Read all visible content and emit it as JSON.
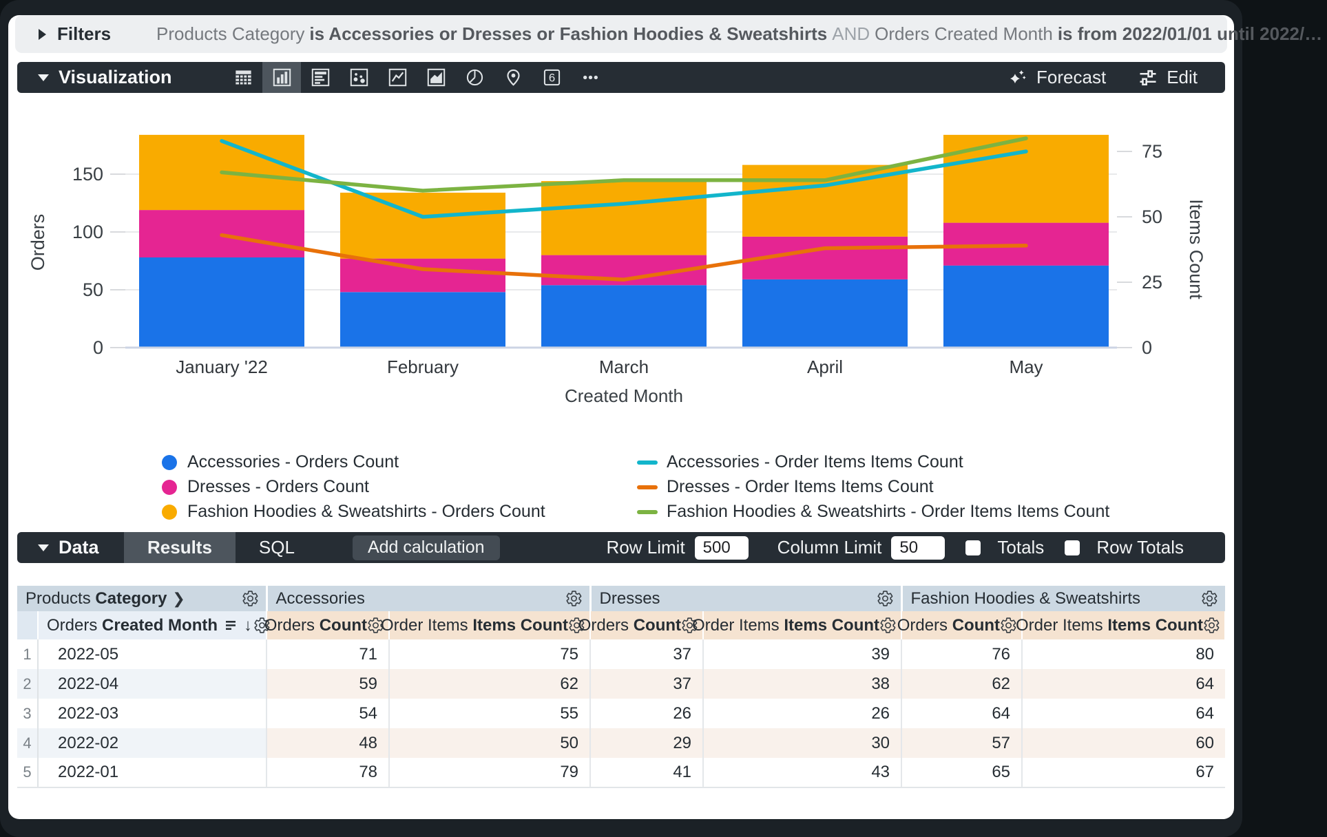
{
  "filters_bar": {
    "label": "Filters",
    "clause": [
      {
        "text": "Products Category",
        "style": "normal"
      },
      {
        "text": "is Accessories or Dresses or Fashion Hoodies & Sweatshirts",
        "style": "bold"
      },
      {
        "text": "AND",
        "style": "muted"
      },
      {
        "text": "Orders Created Month",
        "style": "normal"
      },
      {
        "text": "is from 2022/01/01 until 2022/…",
        "style": "bold"
      }
    ]
  },
  "viz_bar": {
    "label": "Visualization",
    "icons": [
      {
        "name": "table-icon",
        "selected": false
      },
      {
        "name": "column-chart-icon",
        "selected": true
      },
      {
        "name": "bar-chart-icon",
        "selected": false
      },
      {
        "name": "scatter-icon",
        "selected": false
      },
      {
        "name": "line-chart-icon",
        "selected": false
      },
      {
        "name": "area-chart-icon",
        "selected": false
      },
      {
        "name": "pie-chart-icon",
        "selected": false
      },
      {
        "name": "map-icon",
        "selected": false
      },
      {
        "name": "single-value-icon",
        "selected": false
      },
      {
        "name": "more-icon",
        "selected": false
      }
    ],
    "single_value_glyph": "6",
    "forecast_label": "Forecast",
    "edit_label": "Edit"
  },
  "chart_data": {
    "type": "combo (stacked bar + line, dual axis)",
    "categories": [
      "January '22",
      "February",
      "March",
      "April",
      "May"
    ],
    "bar_series": [
      {
        "name": "Accessories - Orders Count",
        "color": "#1A73E8",
        "values": [
          78,
          48,
          54,
          59,
          71
        ]
      },
      {
        "name": "Dresses - Orders Count",
        "color": "#E52592",
        "values": [
          41,
          29,
          26,
          37,
          37
        ]
      },
      {
        "name": "Fashion Hoodies & Sweatshirts - Orders Count",
        "color": "#F9AB00",
        "values": [
          65,
          57,
          64,
          62,
          76
        ]
      }
    ],
    "line_series": [
      {
        "name": "Accessories - Order Items Items Count",
        "color": "#12B5CB",
        "values": [
          79,
          50,
          55,
          62,
          75
        ]
      },
      {
        "name": "Dresses - Order Items Items Count",
        "color": "#E8710A",
        "values": [
          43,
          30,
          26,
          38,
          39
        ]
      },
      {
        "name": "Fashion Hoodies & Sweatshirts - Order Items Items Count",
        "color": "#7CB342",
        "values": [
          67,
          60,
          64,
          64,
          80
        ]
      }
    ],
    "xlabel": "Created Month",
    "y_left": {
      "label": "Orders",
      "ticks": [
        0,
        50,
        100,
        150
      ],
      "range": [
        0,
        190
      ]
    },
    "y_right": {
      "label": "Items Count",
      "ticks": [
        0,
        25,
        50,
        75
      ],
      "range": [
        0,
        96
      ]
    },
    "grid": "horizontal only",
    "legend_position": "bottom, two columns"
  },
  "data_bar": {
    "label": "Data",
    "tabs": [
      {
        "label": "Results",
        "active": true
      },
      {
        "label": "SQL",
        "active": false
      }
    ],
    "add_calculation_label": "Add calculation",
    "row_limit_label": "Row Limit",
    "row_limit_value": "500",
    "column_limit_label": "Column Limit",
    "column_limit_value": "50",
    "totals_label": "Totals",
    "totals_checked": false,
    "row_totals_label": "Row Totals",
    "row_totals_checked": false
  },
  "table": {
    "dimension_group": {
      "normal": "Products",
      "bold": "Category"
    },
    "dimension_column": {
      "normal": "Orders",
      "bold": "Created Month"
    },
    "measure_groups": [
      "Accessories",
      "Dresses",
      "Fashion Hoodies & Sweatshirts"
    ],
    "measure_columns": [
      {
        "normal": "Orders",
        "bold": "Count"
      },
      {
        "normal": "Order Items",
        "bold": "Items Count"
      }
    ],
    "rows": [
      {
        "index": "1",
        "month": "2022-05",
        "values": [
          "71",
          "75",
          "37",
          "39",
          "76",
          "80"
        ]
      },
      {
        "index": "2",
        "month": "2022-04",
        "values": [
          "59",
          "62",
          "37",
          "38",
          "62",
          "64"
        ]
      },
      {
        "index": "3",
        "month": "2022-03",
        "values": [
          "54",
          "55",
          "26",
          "26",
          "64",
          "64"
        ]
      },
      {
        "index": "4",
        "month": "2022-02",
        "values": [
          "48",
          "50",
          "29",
          "30",
          "57",
          "60"
        ]
      },
      {
        "index": "5",
        "month": "2022-01",
        "values": [
          "78",
          "79",
          "41",
          "43",
          "65",
          "67"
        ]
      }
    ]
  }
}
